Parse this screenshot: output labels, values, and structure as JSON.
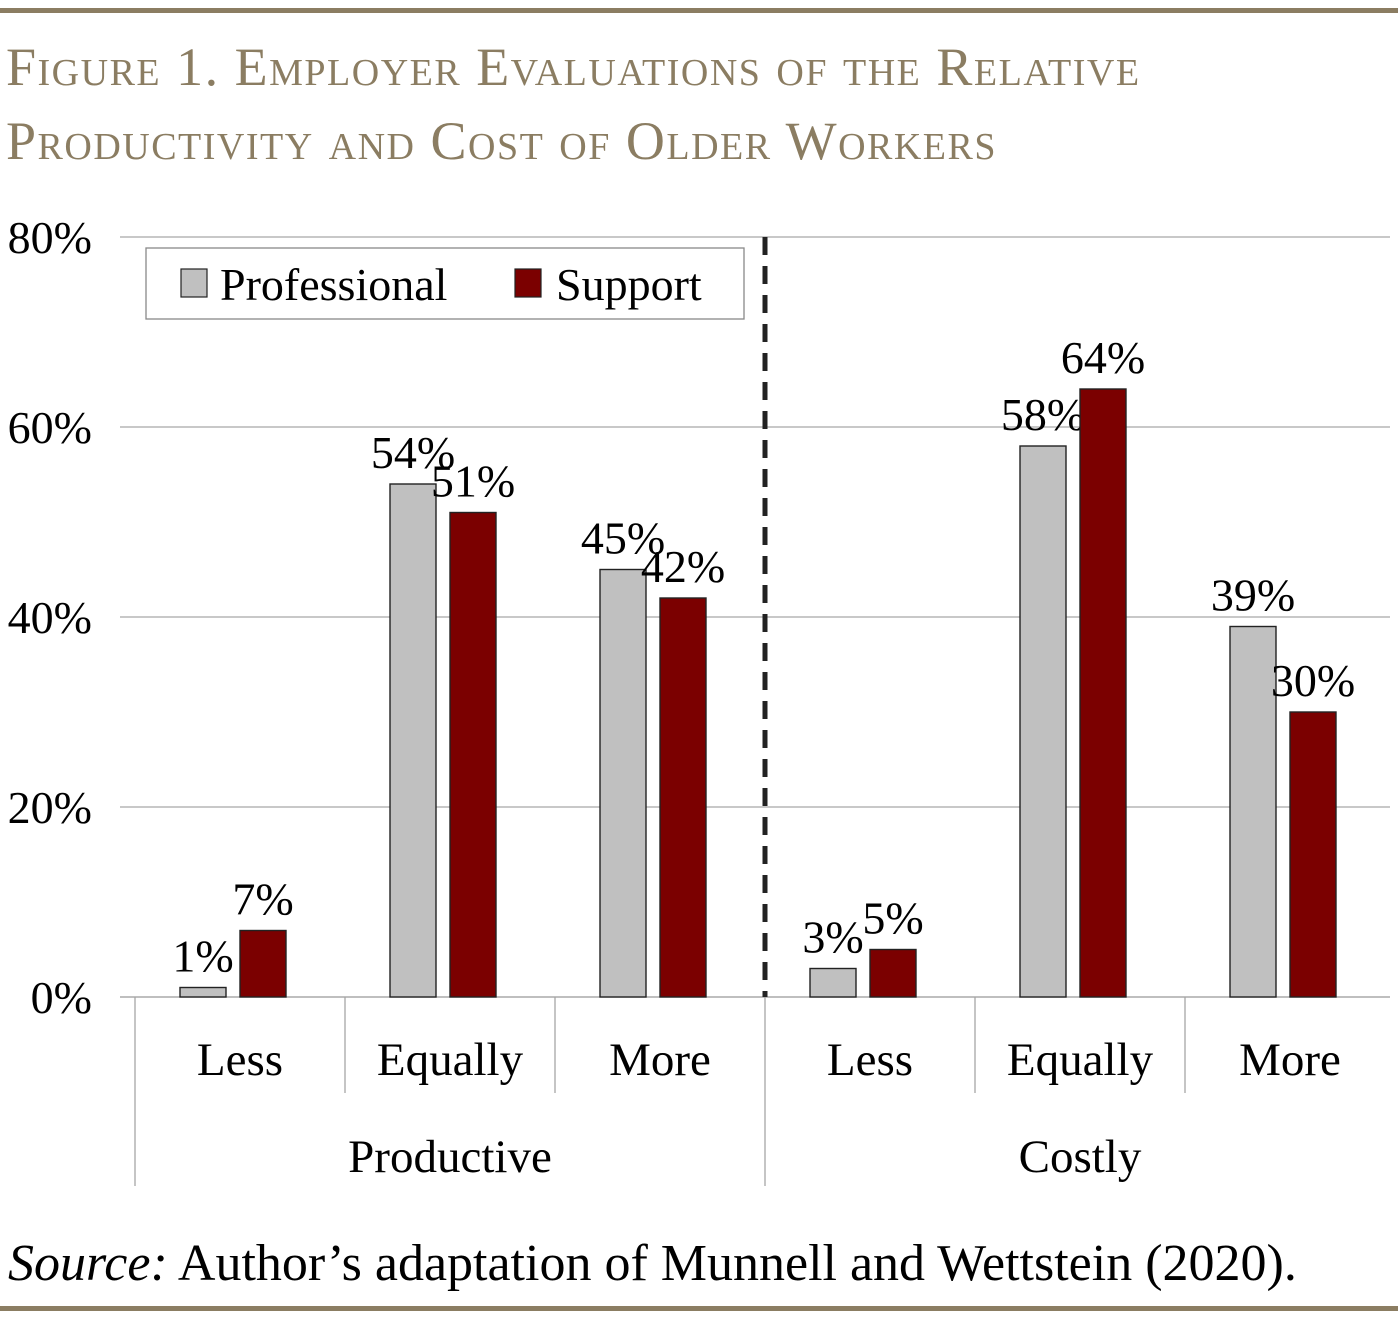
{
  "figure": {
    "title_line1": "Figure 1. Employer Evaluations of the Relative",
    "title_line2": "Productivity and Cost of Older Workers",
    "source_label": "Source:",
    "source_text": " Author’s adaptation of Munnell and Wettstein (2020).",
    "accent_color": "#8b7d62"
  },
  "chart_data": {
    "type": "bar",
    "groups": [
      {
        "name": "Productive",
        "categories": [
          "Less",
          "Equally",
          "More"
        ]
      },
      {
        "name": "Costly",
        "categories": [
          "Less",
          "Equally",
          "More"
        ]
      }
    ],
    "categories": [
      "Less",
      "Equally",
      "More",
      "Less",
      "Equally",
      "More"
    ],
    "series": [
      {
        "name": "Professional",
        "color": "#c0c0c0",
        "values": [
          1,
          54,
          45,
          3,
          58,
          39
        ],
        "labels": [
          "1%",
          "54%",
          "45%",
          "3%",
          "58%",
          "39%"
        ]
      },
      {
        "name": "Support",
        "color": "#7b0000",
        "values": [
          7,
          51,
          42,
          5,
          64,
          30
        ],
        "labels": [
          "7%",
          "51%",
          "42%",
          "5%",
          "64%",
          "30%"
        ]
      }
    ],
    "y_ticks": [
      0,
      20,
      40,
      60,
      80
    ],
    "y_tick_labels": [
      "0%",
      "20%",
      "40%",
      "60%",
      "80%"
    ],
    "ylim": [
      0,
      80
    ],
    "grid": true,
    "legend_position": "top-left",
    "divider": "dashed line between Productive and Costly groups"
  }
}
